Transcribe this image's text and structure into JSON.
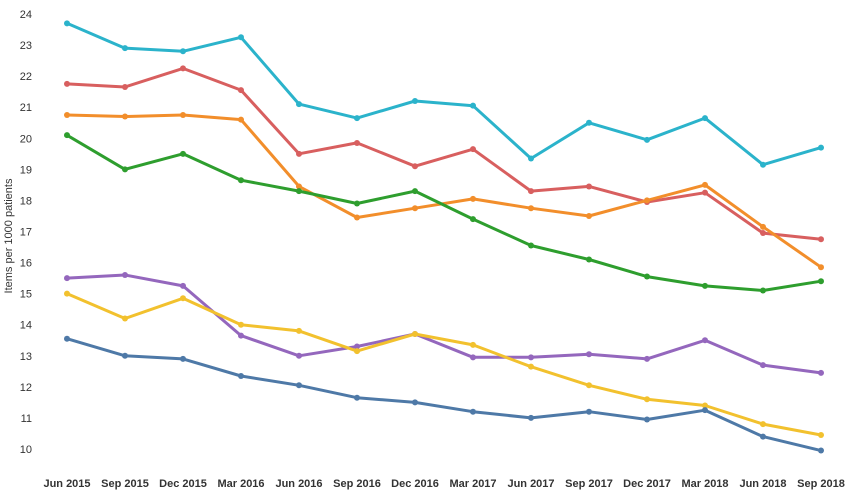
{
  "chart_data": {
    "type": "line",
    "title": "",
    "xlabel": "",
    "ylabel": "Items per 1000 patients",
    "ylim": [
      9.6,
      24.3
    ],
    "yticks": [
      10,
      11,
      12,
      13,
      14,
      15,
      16,
      17,
      18,
      19,
      20,
      21,
      22,
      23,
      24
    ],
    "grid": false,
    "legend": "none",
    "categories": [
      "Jun 2015",
      "Sep 2015",
      "Dec 2015",
      "Mar 2016",
      "Jun 2016",
      "Sep 2016",
      "Dec 2016",
      "Mar 2017",
      "Jun 2017",
      "Sep 2017",
      "Dec 2017",
      "Mar 2018",
      "Jun 2018",
      "Sep 2018"
    ],
    "series": [
      {
        "color": "#2bb3cb",
        "values": [
          23.7,
          22.9,
          22.8,
          23.25,
          21.1,
          20.65,
          21.2,
          21.05,
          19.35,
          20.5,
          19.95,
          20.65,
          19.15,
          19.7
        ]
      },
      {
        "color": "#d85f5f",
        "values": [
          21.75,
          21.65,
          22.25,
          21.55,
          19.5,
          19.85,
          19.1,
          19.65,
          18.3,
          18.45,
          17.95,
          18.25,
          16.95,
          16.75
        ]
      },
      {
        "color": "#f28e2b",
        "values": [
          20.75,
          20.7,
          20.75,
          20.6,
          18.45,
          17.45,
          17.75,
          18.05,
          17.75,
          17.5,
          18.0,
          18.5,
          17.15,
          15.85
        ]
      },
      {
        "color": "#2e9e2e",
        "values": [
          20.1,
          19.0,
          19.5,
          18.65,
          18.3,
          17.9,
          18.3,
          17.4,
          16.55,
          16.1,
          15.55,
          15.25,
          15.1,
          15.4
        ]
      },
      {
        "color": "#9467bd",
        "values": [
          15.5,
          15.6,
          15.25,
          13.65,
          13.0,
          13.3,
          13.7,
          12.95,
          12.95,
          13.05,
          12.9,
          13.5,
          12.7,
          12.45
        ]
      },
      {
        "color": "#f2c12e",
        "values": [
          15.0,
          14.2,
          14.85,
          14.0,
          13.8,
          13.15,
          13.7,
          13.35,
          12.65,
          12.05,
          11.6,
          11.4,
          10.8,
          10.45
        ]
      },
      {
        "color": "#4e79a7",
        "values": [
          13.55,
          13.0,
          12.9,
          12.35,
          12.05,
          11.65,
          11.5,
          11.2,
          11.0,
          11.2,
          10.95,
          11.25,
          10.4,
          9.95
        ]
      }
    ]
  }
}
